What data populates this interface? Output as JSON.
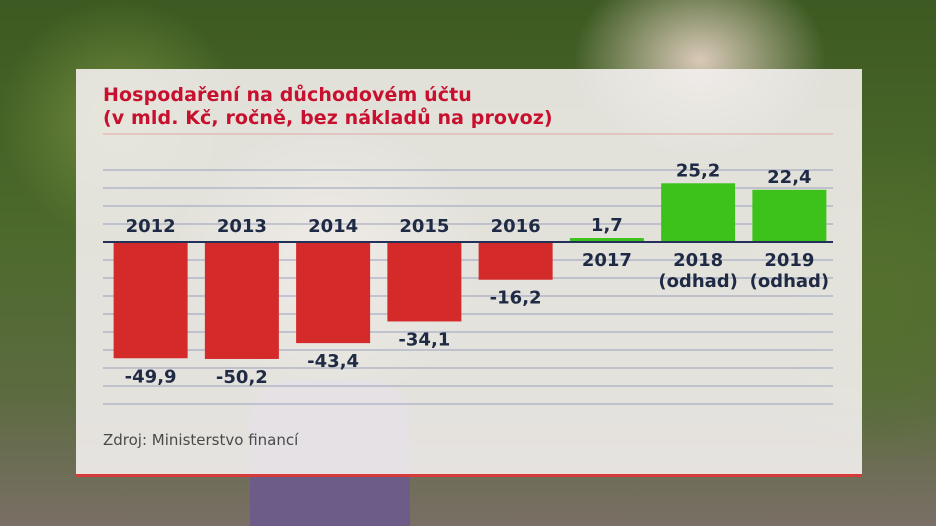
{
  "title_line1": "Hospodaření na důchodovém účtu",
  "title_line2": "(v mld. Kč, ročně, bez nákladů na provoz)",
  "source": "Zdroj: Ministerstvo financí",
  "colors": {
    "negative": "#d42a2a",
    "positive": "#3cc21b",
    "text": "#1f2a44",
    "title": "#c8102e",
    "grid": "#9aa0bd"
  },
  "chart_data": {
    "type": "bar",
    "categories": [
      [
        "2012"
      ],
      [
        "2013"
      ],
      [
        "2014"
      ],
      [
        "2015"
      ],
      [
        "2016"
      ],
      [
        "2017"
      ],
      [
        "2018",
        "(odhad)"
      ],
      [
        "2019",
        "(odhad)"
      ]
    ],
    "values": [
      -49.9,
      -50.2,
      -43.4,
      -34.1,
      -16.2,
      1.7,
      25.2,
      22.4
    ],
    "value_labels": [
      "-49,9",
      "-50,2",
      "-43,4",
      "-34,1",
      "-16,2",
      "1,7",
      "25,2",
      "22,4"
    ],
    "ylim": [
      -56,
      32
    ],
    "grid": true,
    "legend": "none"
  }
}
